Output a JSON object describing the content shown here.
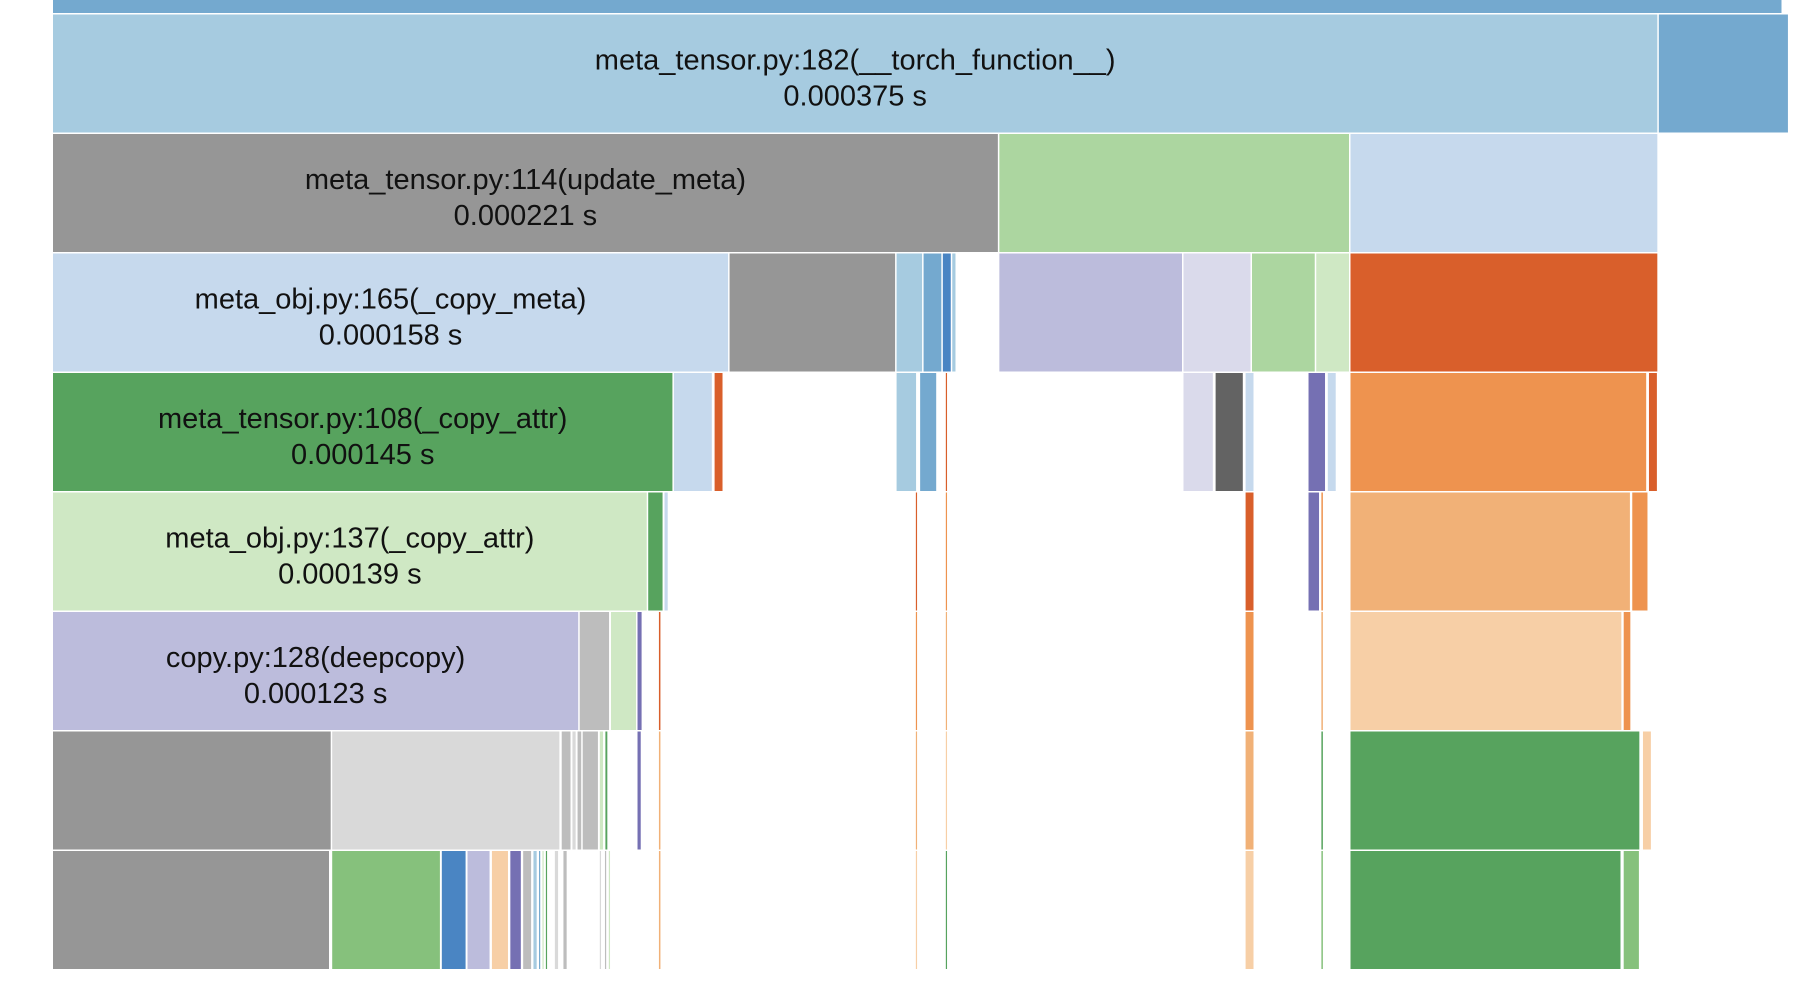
{
  "chart_data": {
    "type": "icicle",
    "title": "",
    "unit": "s",
    "time_axis": [
      0,
      0.000404
    ],
    "total_time_s": 0.000404,
    "colors": {
      "blue": "#74a9cf",
      "light_blue": "#a6cbe0",
      "pale_blue": "#c6d9ed",
      "gray": "#969696",
      "light_gray": "#bdbdbd",
      "pale_gray": "#d9d9d9",
      "dark_gray": "#636363",
      "green": "#57a35e",
      "light_green": "#acd6a0",
      "pale_green": "#cfe8c4",
      "mid_green": "#86c17c",
      "purple": "#bcbcdc",
      "pale_purple": "#dadaeb",
      "dark_purple": "#7570b3",
      "orange_dark": "#d95f2b",
      "orange": "#ee934f",
      "orange_light": "#f1b177",
      "orange_pale": "#f7cfa6",
      "mid_blue": "#4a85c3",
      "label": "#111111",
      "border": "#ffffff"
    },
    "rows": [
      [
        {
          "start": 0,
          "value": 0.000404,
          "color": "blue"
        }
      ],
      [
        {
          "start": 0,
          "value": 0.000375,
          "color": "light_blue",
          "name": "meta_tensor.py:182(__torch_function__)",
          "label": "0.000375 s"
        },
        {
          "start": 0.000375,
          "value": 3.05e-05,
          "color": "blue"
        }
      ],
      [
        {
          "start": 0,
          "value": 0.000221,
          "color": "gray",
          "name": "meta_tensor.py:114(update_meta)",
          "label": "0.000221 s"
        },
        {
          "start": 0.000221,
          "value": 8.2e-05,
          "color": "light_green"
        },
        {
          "start": 0.000303,
          "value": 7.2e-05,
          "color": "pale_blue"
        }
      ],
      [
        {
          "start": 0,
          "value": 0.000158,
          "color": "pale_blue",
          "name": "meta_obj.py:165(_copy_meta)",
          "label": "0.000158 s"
        },
        {
          "start": 0.000158,
          "value": 3.9e-05,
          "color": "gray"
        },
        {
          "start": 0.000197,
          "value": 6.3e-06,
          "color": "light_blue"
        },
        {
          "start": 0.0002033,
          "value": 4.5e-06,
          "color": "blue"
        },
        {
          "start": 0.0002078,
          "value": 2.2e-06,
          "color": "mid_blue"
        },
        {
          "start": 0.00021,
          "value": 1.1e-06,
          "color": "light_blue"
        },
        {
          "start": 0.000221,
          "value": 4.3e-05,
          "color": "purple"
        },
        {
          "start": 0.000264,
          "value": 1.6e-05,
          "color": "pale_purple"
        },
        {
          "start": 0.00028,
          "value": 1.5e-05,
          "color": "light_green"
        },
        {
          "start": 0.000295,
          "value": 8e-06,
          "color": "pale_green"
        },
        {
          "start": 0.000303,
          "value": 7.2e-05,
          "color": "orange_dark"
        }
      ],
      [
        {
          "start": 0,
          "value": 0.000145,
          "color": "green",
          "name": "meta_tensor.py:108(_copy_attr)",
          "label": "0.000145 s"
        },
        {
          "start": 0.000145,
          "value": 9.2e-06,
          "color": "pale_blue"
        },
        {
          "start": 0.0001545,
          "value": 2.2e-06,
          "color": "orange_dark"
        },
        {
          "start": 0.000197,
          "value": 4.9e-06,
          "color": "light_blue"
        },
        {
          "start": 0.0002025,
          "value": 4.1e-06,
          "color": "blue"
        },
        {
          "start": 0.0002085,
          "value": 5e-07,
          "color": "orange_dark"
        },
        {
          "start": 0.000264,
          "value": 7.2e-06,
          "color": "pale_purple"
        },
        {
          "start": 0.0002715,
          "value": 6.7e-06,
          "color": "dark_gray"
        },
        {
          "start": 0.0002785,
          "value": 2.2e-06,
          "color": "pale_blue"
        },
        {
          "start": 0.0002932,
          "value": 4.2e-06,
          "color": "dark_purple"
        },
        {
          "start": 0.0002977,
          "value": 2.2e-06,
          "color": "pale_blue"
        },
        {
          "start": 0.000303,
          "value": 6.94e-05,
          "color": "orange"
        },
        {
          "start": 0.0003727,
          "value": 2.2e-06,
          "color": "orange_dark"
        }
      ],
      [
        {
          "start": 0,
          "value": 0.000139,
          "color": "pale_green",
          "name": "meta_obj.py:137(_copy_attr)",
          "label": "0.000139 s"
        },
        {
          "start": 0.000139,
          "value": 3.7e-06,
          "color": "green"
        },
        {
          "start": 0.0001428,
          "value": 1.1e-06,
          "color": "pale_blue"
        },
        {
          "start": 0.0002015,
          "value": 5e-07,
          "color": "orange_dark"
        },
        {
          "start": 0.0002085,
          "value": 5e-07,
          "color": "orange"
        },
        {
          "start": 0.0002785,
          "value": 2.2e-06,
          "color": "orange_dark"
        },
        {
          "start": 0.0002932,
          "value": 2.8e-06,
          "color": "dark_purple"
        },
        {
          "start": 0.0002962,
          "value": 7e-07,
          "color": "orange"
        },
        {
          "start": 0.000303,
          "value": 6.56e-05,
          "color": "orange_light"
        },
        {
          "start": 0.0003688,
          "value": 3.9e-06,
          "color": "orange"
        }
      ],
      [
        {
          "start": 0,
          "value": 0.000123,
          "color": "purple",
          "name": "copy.py:128(deepcopy)",
          "label": "0.000123 s"
        },
        {
          "start": 0.000123,
          "value": 7.2e-06,
          "color": "light_gray"
        },
        {
          "start": 0.0001303,
          "value": 6.2e-06,
          "color": "pale_green"
        },
        {
          "start": 0.0001365,
          "value": 1.3e-06,
          "color": "dark_purple"
        },
        {
          "start": 0.0001415,
          "value": 7e-07,
          "color": "orange_dark"
        },
        {
          "start": 0.0002015,
          "value": 5e-07,
          "color": "orange"
        },
        {
          "start": 0.0002085,
          "value": 5e-07,
          "color": "orange_light"
        },
        {
          "start": 0.0002785,
          "value": 2.2e-06,
          "color": "orange"
        },
        {
          "start": 0.0002962,
          "value": 7e-07,
          "color": "orange_light"
        },
        {
          "start": 0.000303,
          "value": 6.36e-05,
          "color": "orange_pale"
        },
        {
          "start": 0.0003668,
          "value": 1.9e-06,
          "color": "orange"
        }
      ],
      [
        {
          "start": 0,
          "value": 6.52e-05,
          "color": "gray"
        },
        {
          "start": 6.52e-05,
          "value": 5.34e-05,
          "color": "pale_gray"
        },
        {
          "start": 0.0001188,
          "value": 2.4e-06,
          "color": "light_gray"
        },
        {
          "start": 0.0001213,
          "value": 1.1e-06,
          "color": "pale_gray"
        },
        {
          "start": 0.0001225,
          "value": 1.2e-06,
          "color": "light_gray"
        },
        {
          "start": 0.0001237,
          "value": 3.9e-06,
          "color": "light_gray"
        },
        {
          "start": 0.0001277,
          "value": 1.1e-06,
          "color": "pale_green"
        },
        {
          "start": 0.000129,
          "value": 8e-07,
          "color": "green"
        },
        {
          "start": 0.0001365,
          "value": 1.1e-06,
          "color": "dark_purple"
        },
        {
          "start": 0.0001415,
          "value": 7e-07,
          "color": "orange_light"
        },
        {
          "start": 0.0002015,
          "value": 5e-07,
          "color": "orange_light"
        },
        {
          "start": 0.0002085,
          "value": 5e-07,
          "color": "orange_pale"
        },
        {
          "start": 0.0002785,
          "value": 2.2e-06,
          "color": "orange_light"
        },
        {
          "start": 0.0002962,
          "value": 7e-07,
          "color": "green"
        },
        {
          "start": 0.000303,
          "value": 6.78e-05,
          "color": "green"
        },
        {
          "start": 0.0003713,
          "value": 2.2e-06,
          "color": "orange_pale"
        }
      ],
      [
        {
          "start": 0,
          "value": 6.48e-05,
          "color": "gray"
        },
        {
          "start": 6.52e-05,
          "value": 2.55e-05,
          "color": "mid_green"
        },
        {
          "start": 9.08e-05,
          "value": 5.9e-06,
          "color": "mid_blue"
        },
        {
          "start": 9.68e-05,
          "value": 5.5e-06,
          "color": "purple"
        },
        {
          "start": 0.0001025,
          "value": 4.1e-06,
          "color": "orange_pale"
        },
        {
          "start": 0.0001068,
          "value": 2.8e-06,
          "color": "dark_purple"
        },
        {
          "start": 0.0001098,
          "value": 2.2e-06,
          "color": "light_gray"
        },
        {
          "start": 0.0001122,
          "value": 1.1e-06,
          "color": "light_blue"
        },
        {
          "start": 0.0001135,
          "value": 6e-07,
          "color": "blue"
        },
        {
          "start": 0.0001143,
          "value": 6e-07,
          "color": "pale_green"
        },
        {
          "start": 0.0001151,
          "value": 5e-07,
          "color": "green"
        },
        {
          "start": 0.0001172,
          "value": 1.1e-06,
          "color": "pale_gray"
        },
        {
          "start": 0.0001192,
          "value": 1.1e-06,
          "color": "light_gray"
        },
        {
          "start": 0.0001277,
          "value": 5e-07,
          "color": "pale_gray"
        },
        {
          "start": 0.0001289,
          "value": 5e-07,
          "color": "light_gray"
        },
        {
          "start": 0.0001298,
          "value": 5e-07,
          "color": "pale_green"
        },
        {
          "start": 0.0001415,
          "value": 7e-07,
          "color": "orange_light"
        },
        {
          "start": 0.0002015,
          "value": 5e-07,
          "color": "orange_pale"
        },
        {
          "start": 0.0002085,
          "value": 5e-07,
          "color": "green"
        },
        {
          "start": 0.0002785,
          "value": 2.2e-06,
          "color": "orange_pale"
        },
        {
          "start": 0.0002962,
          "value": 7e-07,
          "color": "mid_green"
        },
        {
          "start": 0.000303,
          "value": 6.34e-05,
          "color": "green"
        },
        {
          "start": 0.0003668,
          "value": 3.9e-06,
          "color": "mid_green"
        }
      ]
    ]
  }
}
